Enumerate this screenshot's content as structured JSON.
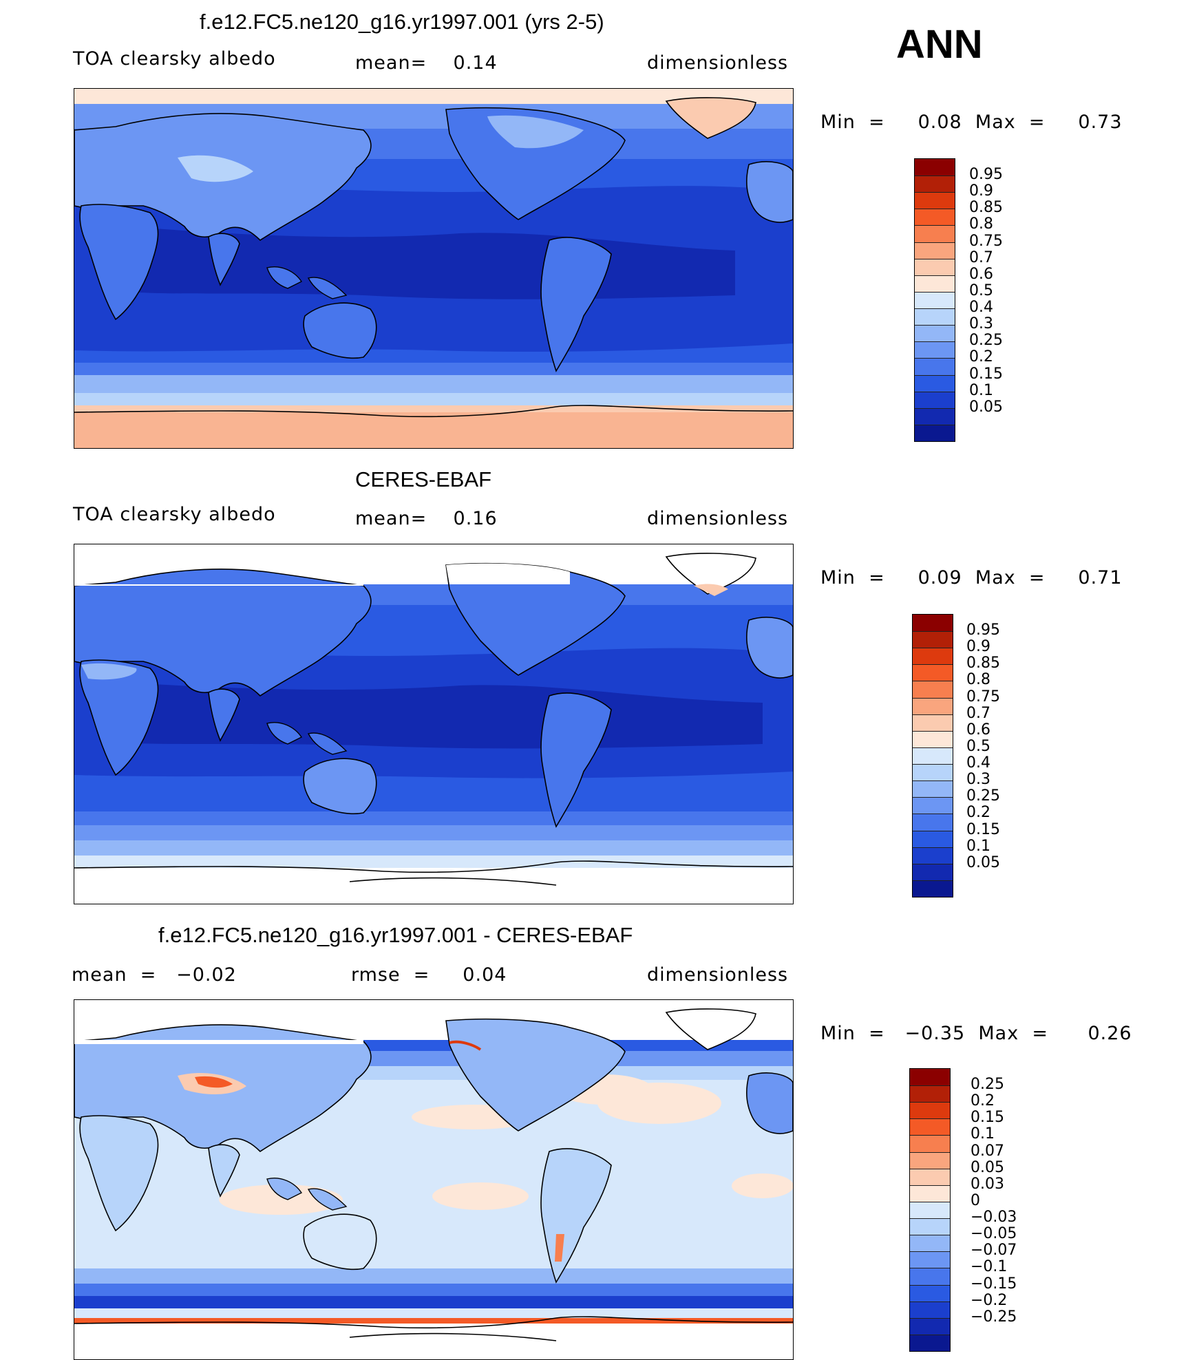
{
  "season": "ANN",
  "panels": [
    {
      "id": "model",
      "title": "f.e12.FC5.ne120_g16.yr1997.001 (yrs 2-5)",
      "left_text": "TOA clearsky albedo",
      "mid_text": "mean=    0.14",
      "right_text": "dimensionless",
      "minmax_text": "Min  =     0.08  Max  =     0.73",
      "colorbar": {
        "colors": [
          "#8b0000",
          "#b22007",
          "#dd3a0e",
          "#f45a26",
          "#f77f4f",
          "#f9a57e",
          "#fbcbb0",
          "#fde7d8",
          "#d7e8fb",
          "#b7d4fa",
          "#93b7f7",
          "#6c96f3",
          "#4876ec",
          "#2a5ae2",
          "#1b3fcd",
          "#1229b0",
          "#0a1890"
        ],
        "labels": [
          "0.95",
          "0.9",
          "0.85",
          "0.8",
          "0.75",
          "0.7",
          "0.6",
          "0.5",
          "0.4",
          "0.3",
          "0.25",
          "0.2",
          "0.15",
          "0.1",
          "0.05"
        ]
      }
    },
    {
      "id": "obs",
      "title": "CERES-EBAF",
      "left_text": "TOA clearsky albedo",
      "mid_text": "mean=    0.16",
      "right_text": "dimensionless",
      "minmax_text": "Min  =     0.09  Max  =     0.71",
      "colorbar": {
        "colors": [
          "#8b0000",
          "#b22007",
          "#dd3a0e",
          "#f45a26",
          "#f77f4f",
          "#f9a57e",
          "#fbcbb0",
          "#fde7d8",
          "#d7e8fb",
          "#b7d4fa",
          "#93b7f7",
          "#6c96f3",
          "#4876ec",
          "#2a5ae2",
          "#1b3fcd",
          "#1229b0",
          "#0a1890"
        ],
        "labels": [
          "0.95",
          "0.9",
          "0.85",
          "0.8",
          "0.75",
          "0.7",
          "0.6",
          "0.5",
          "0.4",
          "0.3",
          "0.25",
          "0.2",
          "0.15",
          "0.1",
          "0.05"
        ]
      }
    },
    {
      "id": "diff",
      "title": "f.e12.FC5.ne120_g16.yr1997.001 - CERES-EBAF",
      "left_text": "mean  =   −0.02",
      "mid_text": "rmse  =     0.04",
      "right_text": "dimensionless",
      "minmax_text": "Min  =   −0.35  Max  =      0.26",
      "colorbar": {
        "colors": [
          "#8b0000",
          "#b22007",
          "#dd3a0e",
          "#f45a26",
          "#f77f4f",
          "#f9a57e",
          "#fbcbb0",
          "#fde7d8",
          "#d7e8fb",
          "#b7d4fa",
          "#93b7f7",
          "#6c96f3",
          "#4876ec",
          "#2a5ae2",
          "#1b3fcd",
          "#1229b0",
          "#0a1890"
        ],
        "labels": [
          "0.25",
          "0.2",
          "0.15",
          "0.1",
          "0.07",
          "0.05",
          "0.03",
          "0",
          "−0.03",
          "−0.05",
          "−0.07",
          "−0.1",
          "−0.15",
          "−0.2",
          "−0.25"
        ]
      }
    }
  ],
  "colors": {
    "deep_blue": "#1229b0",
    "mid_blue": "#2a5ae2",
    "light_blue": "#93b7f7",
    "pale_blue": "#d7e8fb",
    "peach": "#fbcbb0",
    "salmon": "#f9a57e",
    "orange_red": "#f45a26"
  }
}
